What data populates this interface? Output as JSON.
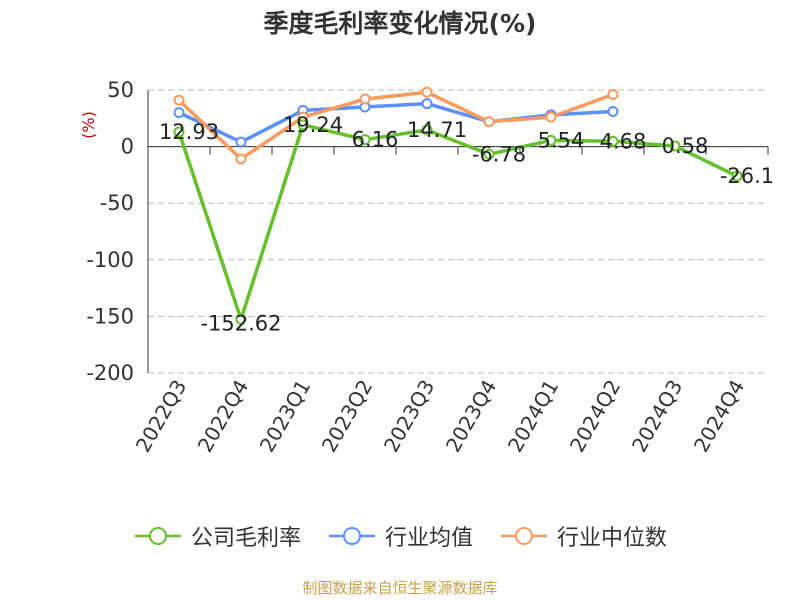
{
  "title": "季度毛利率变化情况(%)",
  "source": "制图数据来自恒生聚源数据库",
  "chart_data": {
    "type": "line",
    "title": "季度毛利率变化情况(%)",
    "ylabel": "(%)",
    "xlabel": "",
    "ylim": [
      -200,
      50
    ],
    "yticks": [
      50,
      0,
      -50,
      -100,
      -150,
      -200
    ],
    "grid": true,
    "legend_position": "bottom",
    "categories": [
      "2022Q3",
      "2022Q4",
      "2023Q1",
      "2023Q2",
      "2023Q3",
      "2023Q4",
      "2024Q1",
      "2024Q2",
      "2024Q3",
      "2024Q4"
    ],
    "series": [
      {
        "name": "公司毛利率",
        "color": "#66c02b",
        "values": [
          12.93,
          -152.62,
          19.24,
          6.16,
          14.71,
          -6.78,
          5.54,
          4.68,
          0.58,
          -26.1
        ],
        "labels": [
          "12.93",
          "-152.62",
          "19.24",
          "6.16",
          "14.71",
          "-6.78",
          "5.54",
          "4.68",
          "0.58",
          "-26.1"
        ]
      },
      {
        "name": "行业均值",
        "color": "#5b8ff9",
        "values": [
          30,
          4,
          32,
          35,
          38,
          22,
          28,
          31,
          null,
          null
        ]
      },
      {
        "name": "行业中位数",
        "color": "#f79b5e",
        "values": [
          41,
          -11,
          26,
          42,
          48,
          22,
          26,
          46,
          null,
          null
        ]
      }
    ]
  }
}
